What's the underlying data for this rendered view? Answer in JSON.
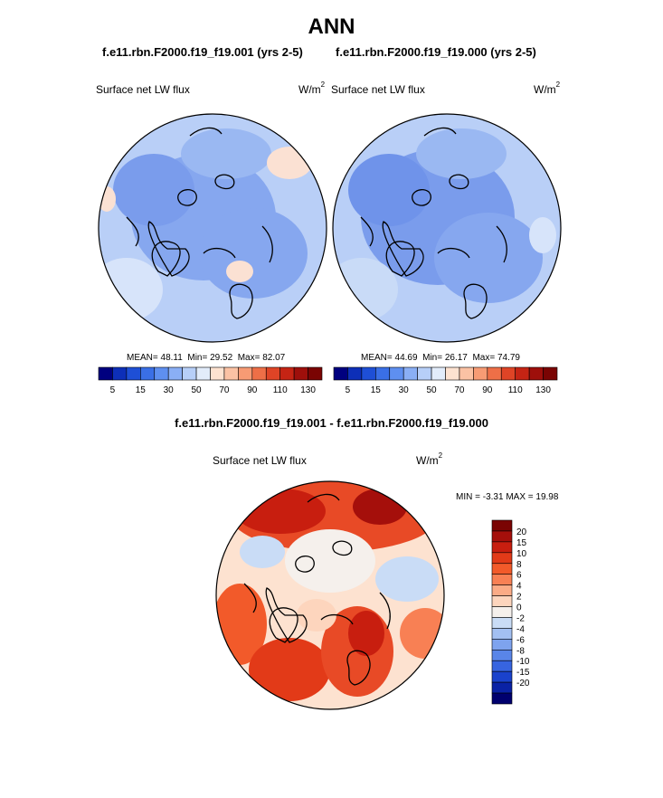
{
  "page": {
    "title": "ANN",
    "panel1_title": "f.e11.rbn.F2000.f19_f19.001 (yrs 2-5)",
    "panel2_title": "f.e11.rbn.F2000.f19_f19.000 (yrs 2-5)",
    "diff_title": "f.e11.rbn.F2000.f19_f19.001 - f.e11.rbn.F2000.f19_f19.000"
  },
  "panels": [
    {
      "field_label": "Surface net LW flux",
      "units_base": "W/m",
      "units_exp": "2",
      "mean_label": "MEAN=",
      "mean": "48.11",
      "min_label": "Min=",
      "min": "29.52",
      "max_label": "Max=",
      "max": "82.07"
    },
    {
      "field_label": "Surface net LW flux",
      "units_base": "W/m",
      "units_exp": "2",
      "mean_label": "MEAN=",
      "mean": "44.69",
      "min_label": "Min=",
      "min": "26.17",
      "max_label": "Max=",
      "max": "74.79"
    }
  ],
  "diff_panel": {
    "field_label": "Surface net LW flux",
    "units_base": "W/m",
    "units_exp": "2",
    "min_label": "MIN =",
    "min": "-3.31",
    "max_label": "MAX =",
    "max": "19.98"
  },
  "chart_data": [
    {
      "type": "heatmap",
      "projection": "north polar stereographic",
      "variable": "Surface net LW flux",
      "units": "W/m2",
      "mean": 48.11,
      "min": 29.52,
      "max": 82.07,
      "colorbar": {
        "orientation": "horizontal",
        "tick_labels": [
          "5",
          "15",
          "30",
          "50",
          "70",
          "90",
          "110",
          "130"
        ],
        "colors": [
          "#00007f",
          "#0d2fb8",
          "#1e4fd6",
          "#3a6fe6",
          "#5e8ff0",
          "#8aaff5",
          "#b7cff8",
          "#e2ecfa",
          "#fde2d0",
          "#fbc2a4",
          "#f79b74",
          "#ee6f47",
          "#df4426",
          "#c52414",
          "#9e0f0b",
          "#7a0403"
        ]
      }
    },
    {
      "type": "heatmap",
      "projection": "north polar stereographic",
      "variable": "Surface net LW flux",
      "units": "W/m2",
      "mean": 44.69,
      "min": 26.17,
      "max": 74.79,
      "colorbar": {
        "orientation": "horizontal",
        "tick_labels": [
          "5",
          "15",
          "30",
          "50",
          "70",
          "90",
          "110",
          "130"
        ],
        "colors": [
          "#00007f",
          "#0d2fb8",
          "#1e4fd6",
          "#3a6fe6",
          "#5e8ff0",
          "#8aaff5",
          "#b7cff8",
          "#e2ecfa",
          "#fde2d0",
          "#fbc2a4",
          "#f79b74",
          "#ee6f47",
          "#df4426",
          "#c52414",
          "#9e0f0b",
          "#7a0403"
        ]
      }
    },
    {
      "type": "heatmap",
      "projection": "north polar stereographic",
      "variable": "Surface net LW flux",
      "units": "W/m2",
      "min": -3.31,
      "max": 19.98,
      "colorbar": {
        "orientation": "vertical",
        "tick_labels": [
          "20",
          "15",
          "10",
          "8",
          "6",
          "4",
          "2",
          "0",
          "-2",
          "-4",
          "-6",
          "-8",
          "-10",
          "-15",
          "-20"
        ],
        "colors": [
          "#7a0403",
          "#a50f0b",
          "#c81e0f",
          "#e23a18",
          "#f25a2a",
          "#f88054",
          "#fbab86",
          "#fdd5bd",
          "#f5f0ec",
          "#c9dcf6",
          "#a3c0f2",
          "#7ea3ee",
          "#5985e8",
          "#3764e0",
          "#1a42cc",
          "#0a22a5",
          "#00006e"
        ]
      }
    }
  ]
}
